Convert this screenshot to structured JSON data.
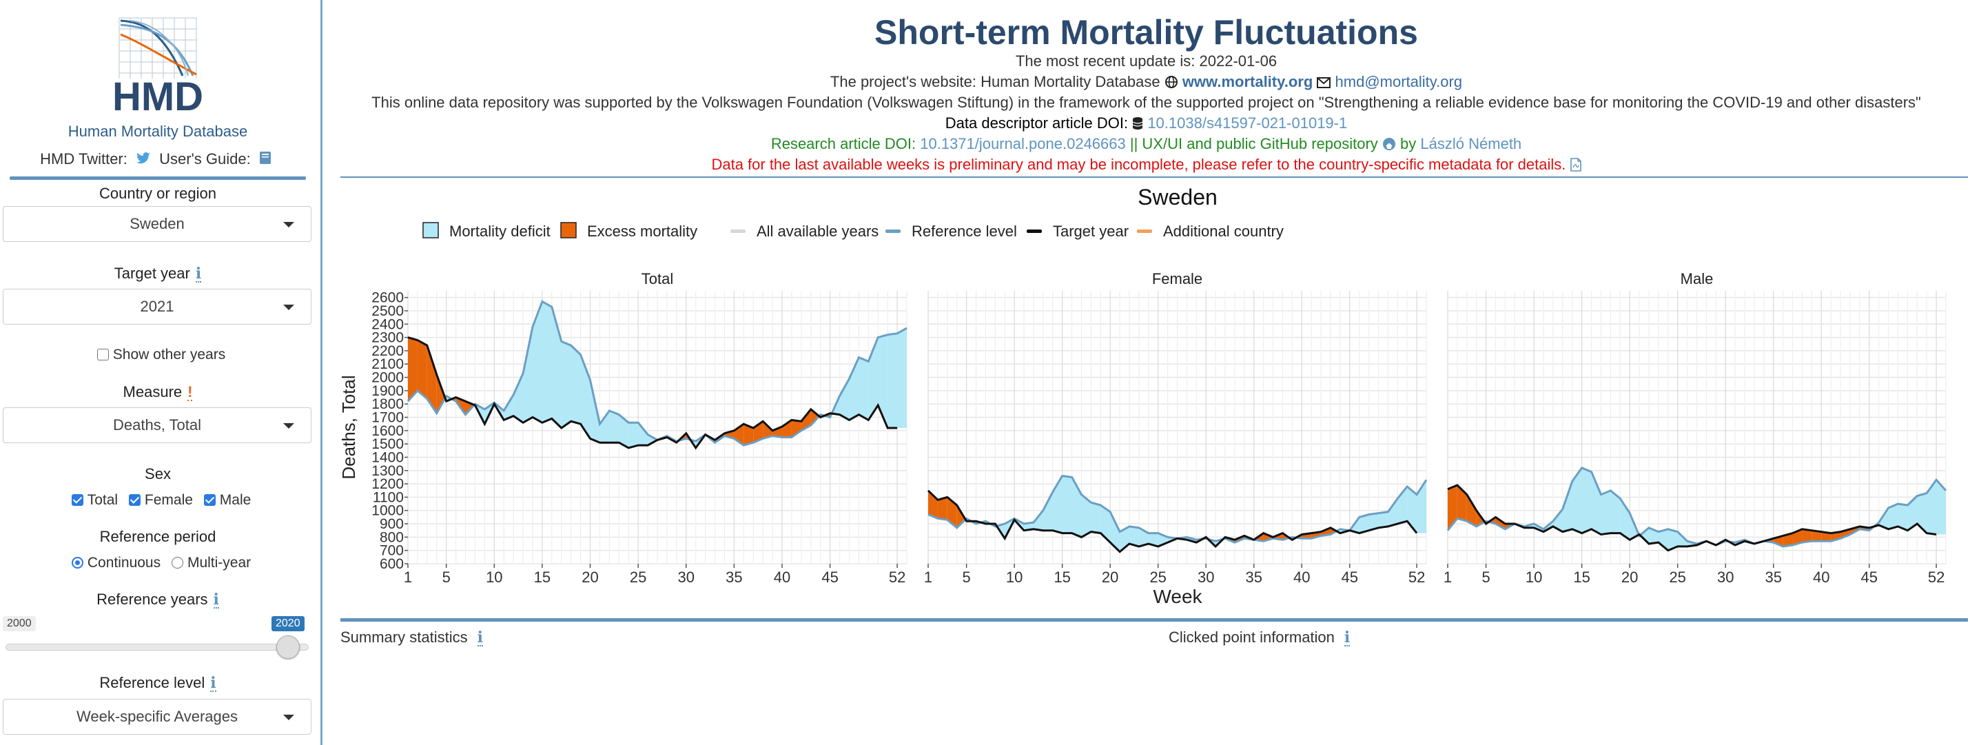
{
  "sidebar": {
    "logo_text": "HMD",
    "site_name": "Human Mortality Database",
    "twitter_label": "HMD Twitter:",
    "guide_label": "User's Guide:",
    "country_label": "Country or region",
    "country_value": "Sweden",
    "target_year_label": "Target year",
    "target_year_value": "2021",
    "show_other_years_label": "Show other years",
    "measure_label": "Measure",
    "measure_value": "Deaths, Total",
    "sex_label": "Sex",
    "sex_total": "Total",
    "sex_female": "Female",
    "sex_male": "Male",
    "ref_period_label": "Reference period",
    "ref_continuous": "Continuous",
    "ref_multiyear": "Multi-year",
    "ref_years_label": "Reference years",
    "ref_years_min": "2000",
    "ref_years_max": "2020",
    "ref_level_label": "Reference level",
    "ref_level_value": "Week-specific Averages"
  },
  "header": {
    "title": "Short-term Mortality Fluctuations",
    "update_text": "The most recent update is: 2022-01-06",
    "website_prefix": "The project's website: Human Mortality Database",
    "website_link": "www.mortality.org",
    "email_link": "hmd@mortality.org",
    "support_text": "This online data repository was supported by the Volkswagen Foundation (Volkswagen Stiftung) in the framework of the supported project on \"Strengthening a reliable evidence base for monitoring the COVID-19 and other disasters\"",
    "descriptor_prefix": "Data descriptor article DOI:",
    "descriptor_doi": "10.1038/s41597-021-01019-1",
    "research_prefix": "Research article DOI:",
    "research_doi": "10.1371/journal.pone.0246663",
    "research_mid": "|| UX/UI and public GitHub repository",
    "research_by": "by",
    "author": "László Németh",
    "warning": "Data for the last available weeks is preliminary and may be incomplete, please refer to the country-specific metadata for details."
  },
  "bottom": {
    "summary_label": "Summary statistics",
    "clicked_label": "Clicked point information"
  },
  "colors": {
    "deficit": "#b3e8f7",
    "excess": "#e8660a",
    "reference": "#6a9fc4",
    "target": "#111111",
    "all_years": "#d8d8d8",
    "additional": "#f0a060"
  },
  "chart_data": {
    "type": "line",
    "title": "Sweden",
    "xlabel": "Week",
    "ylabel": "Deaths, Total",
    "legend": [
      "Mortality deficit",
      "Excess mortality",
      "All available years",
      "Reference level",
      "Target year",
      "Additional country"
    ],
    "legend_position": "top",
    "xticks": [
      1,
      5,
      10,
      15,
      20,
      25,
      30,
      35,
      40,
      45,
      52
    ],
    "yticks": [
      600,
      700,
      800,
      900,
      1000,
      1100,
      1200,
      1300,
      1400,
      1500,
      1600,
      1700,
      1800,
      1900,
      2000,
      2100,
      2200,
      2300,
      2400,
      2500,
      2600
    ],
    "ylim": [
      600,
      2650
    ],
    "xlim": [
      1,
      53
    ],
    "grid": true,
    "panels": [
      {
        "name": "Total",
        "series": [
          {
            "name": "Reference level",
            "x": [
              1,
              2,
              3,
              4,
              5,
              6,
              7,
              8,
              9,
              10,
              11,
              12,
              13,
              14,
              15,
              16,
              17,
              18,
              19,
              20,
              21,
              22,
              23,
              24,
              25,
              26,
              27,
              28,
              29,
              30,
              31,
              32,
              33,
              34,
              35,
              36,
              37,
              38,
              39,
              40,
              41,
              42,
              43,
              44,
              45,
              46,
              47,
              48,
              49,
              50,
              51,
              52,
              53
            ],
            "values": [
              1820,
              1900,
              1840,
              1730,
              1860,
              1820,
              1720,
              1800,
              1760,
              1810,
              1750,
              1870,
              2030,
              2380,
              2570,
              2530,
              2270,
              2240,
              2170,
              1980,
              1650,
              1750,
              1720,
              1660,
              1660,
              1570,
              1530,
              1560,
              1520,
              1540,
              1520,
              1570,
              1510,
              1560,
              1540,
              1490,
              1510,
              1540,
              1560,
              1550,
              1550,
              1600,
              1640,
              1720,
              1700,
              1860,
              1990,
              2150,
              2120,
              2300,
              2320,
              2330,
              2370
            ]
          },
          {
            "name": "Target year",
            "x": [
              1,
              2,
              3,
              4,
              5,
              6,
              7,
              8,
              9,
              10,
              11,
              12,
              13,
              14,
              15,
              16,
              17,
              18,
              19,
              20,
              21,
              22,
              23,
              24,
              25,
              26,
              27,
              28,
              29,
              30,
              31,
              32,
              33,
              34,
              35,
              36,
              37,
              38,
              39,
              40,
              41,
              42,
              43,
              44,
              45,
              46,
              47,
              48,
              49,
              50,
              51,
              52
            ],
            "values": [
              2300,
              2280,
              2240,
              2020,
              1820,
              1850,
              1820,
              1790,
              1650,
              1800,
              1680,
              1710,
              1660,
              1700,
              1660,
              1690,
              1620,
              1670,
              1650,
              1540,
              1510,
              1510,
              1510,
              1470,
              1490,
              1490,
              1530,
              1550,
              1510,
              1580,
              1470,
              1570,
              1530,
              1580,
              1600,
              1650,
              1620,
              1670,
              1600,
              1630,
              1680,
              1670,
              1760,
              1700,
              1730,
              1720,
              1680,
              1720,
              1680,
              1790,
              1620,
              1620
            ]
          }
        ]
      },
      {
        "name": "Female",
        "series": [
          {
            "name": "Reference level",
            "x": [
              1,
              2,
              3,
              4,
              5,
              6,
              7,
              8,
              9,
              10,
              11,
              12,
              13,
              14,
              15,
              16,
              17,
              18,
              19,
              20,
              21,
              22,
              23,
              24,
              25,
              26,
              27,
              28,
              29,
              30,
              31,
              32,
              33,
              34,
              35,
              36,
              37,
              38,
              39,
              40,
              41,
              42,
              43,
              44,
              45,
              46,
              47,
              48,
              49,
              50,
              51,
              52,
              53
            ],
            "values": [
              970,
              940,
              930,
              870,
              940,
              900,
              920,
              880,
              900,
              940,
              900,
              910,
              1000,
              1140,
              1260,
              1250,
              1120,
              1060,
              1040,
              990,
              840,
              880,
              870,
              830,
              830,
              800,
              790,
              800,
              780,
              790,
              770,
              790,
              760,
              790,
              780,
              770,
              790,
              780,
              800,
              790,
              790,
              810,
              820,
              860,
              850,
              950,
              970,
              980,
              990,
              1090,
              1180,
              1120,
              1230
            ]
          },
          {
            "name": "Target year",
            "x": [
              1,
              2,
              3,
              4,
              5,
              6,
              7,
              8,
              9,
              10,
              11,
              12,
              13,
              14,
              15,
              16,
              17,
              18,
              19,
              20,
              21,
              22,
              23,
              24,
              25,
              26,
              27,
              28,
              29,
              30,
              31,
              32,
              33,
              34,
              35,
              36,
              37,
              38,
              39,
              40,
              41,
              42,
              43,
              44,
              45,
              46,
              47,
              48,
              49,
              50,
              51,
              52
            ],
            "values": [
              1150,
              1080,
              1100,
              1040,
              920,
              920,
              900,
              900,
              790,
              930,
              850,
              860,
              850,
              850,
              830,
              830,
              800,
              840,
              830,
              760,
              690,
              750,
              730,
              750,
              730,
              760,
              790,
              780,
              760,
              800,
              730,
              800,
              780,
              810,
              780,
              830,
              800,
              830,
              780,
              820,
              830,
              840,
              870,
              830,
              850,
              830,
              850,
              870,
              880,
              900,
              920,
              830
            ]
          }
        ]
      },
      {
        "name": "Male",
        "series": [
          {
            "name": "Reference level",
            "x": [
              1,
              2,
              3,
              4,
              5,
              6,
              7,
              8,
              9,
              10,
              11,
              12,
              13,
              14,
              15,
              16,
              17,
              18,
              19,
              20,
              21,
              22,
              23,
              24,
              25,
              26,
              27,
              28,
              29,
              30,
              31,
              32,
              33,
              34,
              35,
              36,
              37,
              38,
              39,
              40,
              41,
              42,
              43,
              44,
              45,
              46,
              47,
              48,
              49,
              50,
              51,
              52,
              53
            ],
            "values": [
              850,
              940,
              920,
              880,
              920,
              900,
              860,
              900,
              880,
              900,
              860,
              920,
              1010,
              1220,
              1320,
              1290,
              1120,
              1150,
              1090,
              980,
              810,
              870,
              840,
              860,
              840,
              770,
              750,
              770,
              740,
              770,
              760,
              780,
              750,
              770,
              760,
              730,
              740,
              760,
              770,
              770,
              770,
              790,
              820,
              860,
              850,
              910,
              1020,
              1050,
              1040,
              1110,
              1130,
              1230,
              1150
            ]
          },
          {
            "name": "Target year",
            "x": [
              1,
              2,
              3,
              4,
              5,
              6,
              7,
              8,
              9,
              10,
              11,
              12,
              13,
              14,
              15,
              16,
              17,
              18,
              19,
              20,
              21,
              22,
              23,
              24,
              25,
              26,
              27,
              28,
              29,
              30,
              31,
              32,
              33,
              34,
              35,
              36,
              37,
              38,
              39,
              40,
              41,
              42,
              43,
              44,
              45,
              46,
              47,
              48,
              49,
              50,
              51,
              52
            ],
            "values": [
              1160,
              1190,
              1120,
              1000,
              900,
              950,
              900,
              900,
              870,
              870,
              840,
              880,
              840,
              860,
              830,
              860,
              820,
              830,
              830,
              780,
              820,
              750,
              760,
              700,
              730,
              730,
              740,
              770,
              740,
              780,
              740,
              770,
              750,
              770,
              790,
              810,
              830,
              860,
              850,
              840,
              830,
              840,
              860,
              880,
              870,
              890,
              860,
              880,
              850,
              900,
              830,
              820
            ]
          }
        ]
      }
    ]
  }
}
